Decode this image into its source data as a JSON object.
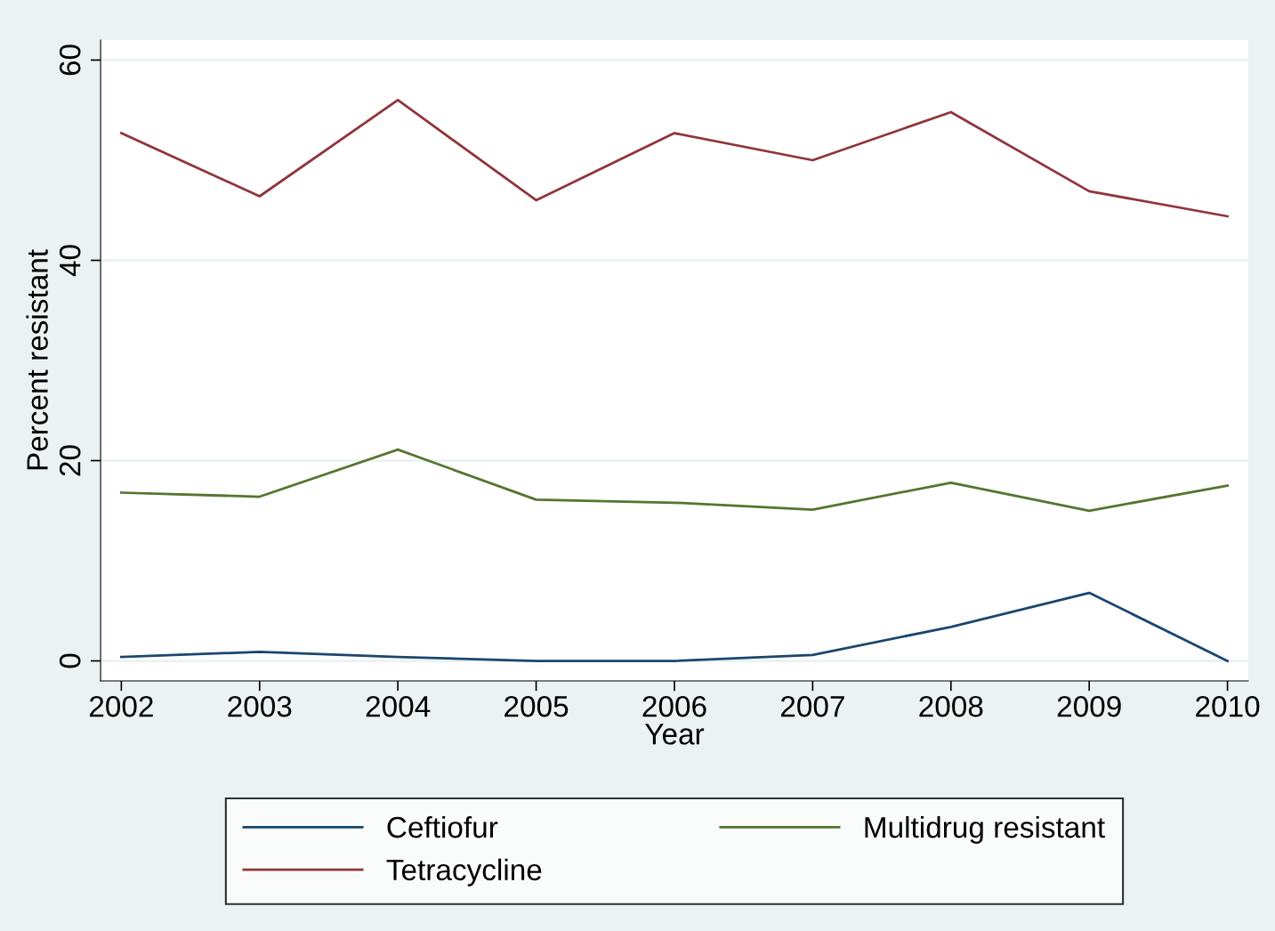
{
  "chart_data": {
    "type": "line",
    "xlabel": "Year",
    "ylabel": "Percent resistant",
    "x": [
      2002,
      2003,
      2004,
      2005,
      2006,
      2007,
      2008,
      2009,
      2010
    ],
    "series": [
      {
        "name": "Ceftiofur",
        "color": "#1a476f",
        "values": [
          0.4,
          0.9,
          0.4,
          0,
          0,
          0.6,
          3.4,
          6.8,
          0
        ]
      },
      {
        "name": "Tetracycline",
        "color": "#90353b",
        "values": [
          52.7,
          46.4,
          56.0,
          46.0,
          52.7,
          50.0,
          54.8,
          46.9,
          44.4
        ]
      },
      {
        "name": "Multidrug resistant",
        "color": "#55752f",
        "values": [
          16.8,
          16.4,
          21.1,
          16.1,
          15.8,
          15.1,
          17.8,
          15.0,
          17.5
        ]
      }
    ],
    "xlim": [
      2001.85,
      2010.15
    ],
    "xticks": [
      2002,
      2003,
      2004,
      2005,
      2006,
      2007,
      2008,
      2009,
      2010
    ],
    "ylim": [
      -2,
      62
    ],
    "yticks": [
      0,
      20,
      40,
      60
    ],
    "grid": "y",
    "legend": "bottom",
    "marker": "none",
    "line_style": "solid"
  }
}
